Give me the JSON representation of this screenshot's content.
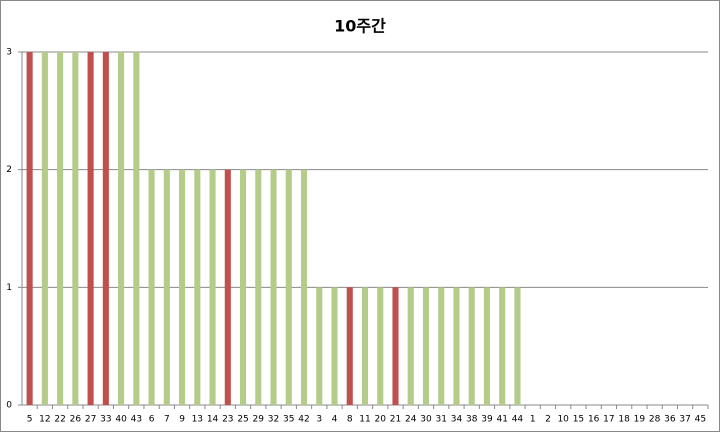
{
  "chart_data": {
    "type": "bar",
    "title": "10주간",
    "categories": [
      "5",
      "12",
      "22",
      "26",
      "27",
      "33",
      "40",
      "43",
      "6",
      "7",
      "9",
      "13",
      "14",
      "23",
      "25",
      "29",
      "32",
      "35",
      "42",
      "3",
      "4",
      "8",
      "11",
      "20",
      "21",
      "24",
      "30",
      "31",
      "34",
      "38",
      "39",
      "41",
      "44",
      "1",
      "2",
      "10",
      "15",
      "16",
      "17",
      "18",
      "19",
      "28",
      "36",
      "37",
      "45"
    ],
    "values": [
      3,
      3,
      3,
      3,
      3,
      3,
      3,
      3,
      2,
      2,
      2,
      2,
      2,
      2,
      2,
      2,
      2,
      2,
      2,
      1,
      1,
      1,
      1,
      1,
      1,
      1,
      1,
      1,
      1,
      1,
      1,
      1,
      1,
      0,
      0,
      0,
      0,
      0,
      0,
      0,
      0,
      0,
      0,
      0,
      0
    ],
    "colors": [
      "#c0504d",
      "#b3cc8a",
      "#b3cc8a",
      "#b3cc8a",
      "#c0504d",
      "#c0504d",
      "#b3cc8a",
      "#b3cc8a",
      "#b3cc8a",
      "#b3cc8a",
      "#b3cc8a",
      "#b3cc8a",
      "#b3cc8a",
      "#c0504d",
      "#b3cc8a",
      "#b3cc8a",
      "#b3cc8a",
      "#b3cc8a",
      "#b3cc8a",
      "#b3cc8a",
      "#b3cc8a",
      "#c0504d",
      "#b3cc8a",
      "#b3cc8a",
      "#c0504d",
      "#b3cc8a",
      "#b3cc8a",
      "#b3cc8a",
      "#b3cc8a",
      "#b3cc8a",
      "#b3cc8a",
      "#b3cc8a",
      "#b3cc8a",
      "#b3cc8a",
      "#b3cc8a",
      "#b3cc8a",
      "#b3cc8a",
      "#b3cc8a",
      "#b3cc8a",
      "#b3cc8a",
      "#b3cc8a",
      "#b3cc8a",
      "#b3cc8a",
      "#b3cc8a",
      "#b3cc8a"
    ],
    "ylim": [
      0,
      3
    ],
    "yticks": [
      0,
      1,
      2,
      3
    ],
    "grid": true
  }
}
